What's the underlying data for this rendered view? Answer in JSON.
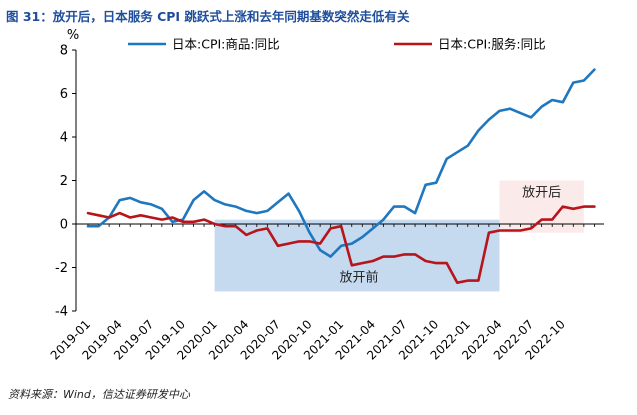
{
  "figure": {
    "title": "图 31：放开后，日本服务 CPI 跳跃式上涨和去年同期基数突然走低有关",
    "source": "资料来源：Wind，信达证券研发中心"
  },
  "chart_data": {
    "type": "line",
    "ylabel": "%",
    "ylim": [
      -4,
      8
    ],
    "yticks": [
      -4,
      -2,
      0,
      2,
      4,
      6,
      8
    ],
    "xticks": [
      "2019-01",
      "2019-04",
      "2019-07",
      "2019-10",
      "2020-01",
      "2020-04",
      "2020-07",
      "2020-10",
      "2021-01",
      "2021-04",
      "2021-07",
      "2021-10",
      "2022-01",
      "2022-04",
      "2022-07",
      "2022-10"
    ],
    "x_start": "2019-01",
    "grid": false,
    "legend_position": "top-right",
    "annotations": [
      {
        "label": "放开前",
        "from": "2020-01",
        "to": "2022-04",
        "y_range": [
          -3.1,
          0.2
        ],
        "color": "#c5d9ef"
      },
      {
        "label": "放开后",
        "from": "2022-04",
        "to": "2022-12",
        "y_range": [
          -0.4,
          2.0
        ],
        "color": "#fbeaea"
      }
    ],
    "series": [
      {
        "name": "日本:CPI:商品:同比",
        "color": "#1f77c0",
        "values": [
          -0.1,
          -0.1,
          0.3,
          1.1,
          1.2,
          1.0,
          0.9,
          0.7,
          0.1,
          0.2,
          1.1,
          1.5,
          1.1,
          0.9,
          0.8,
          0.6,
          0.5,
          0.6,
          1.0,
          1.4,
          0.6,
          -0.4,
          -1.2,
          -1.5,
          -1.0,
          -0.9,
          -0.6,
          -0.2,
          0.2,
          0.8,
          0.8,
          0.5,
          1.8,
          1.9,
          3.0,
          3.3,
          3.6,
          4.3,
          4.8,
          5.2,
          5.3,
          5.1,
          4.9,
          5.4,
          5.7,
          5.6,
          6.5,
          6.6,
          7.1
        ]
      },
      {
        "name": "日本:CPI:服务:同比",
        "color": "#b8141b",
        "values": [
          0.5,
          0.4,
          0.3,
          0.5,
          0.3,
          0.4,
          0.3,
          0.2,
          0.3,
          0.1,
          0.1,
          0.2,
          0.0,
          -0.1,
          -0.1,
          -0.5,
          -0.3,
          -0.2,
          -1.0,
          -0.9,
          -0.8,
          -0.8,
          -0.9,
          -0.2,
          -0.1,
          -1.9,
          -1.8,
          -1.7,
          -1.5,
          -1.5,
          -1.4,
          -1.4,
          -1.7,
          -1.8,
          -1.8,
          -2.7,
          -2.6,
          -2.6,
          -0.4,
          -0.3,
          -0.3,
          -0.3,
          -0.2,
          0.2,
          0.2,
          0.8,
          0.7,
          0.8,
          0.8
        ]
      }
    ]
  }
}
